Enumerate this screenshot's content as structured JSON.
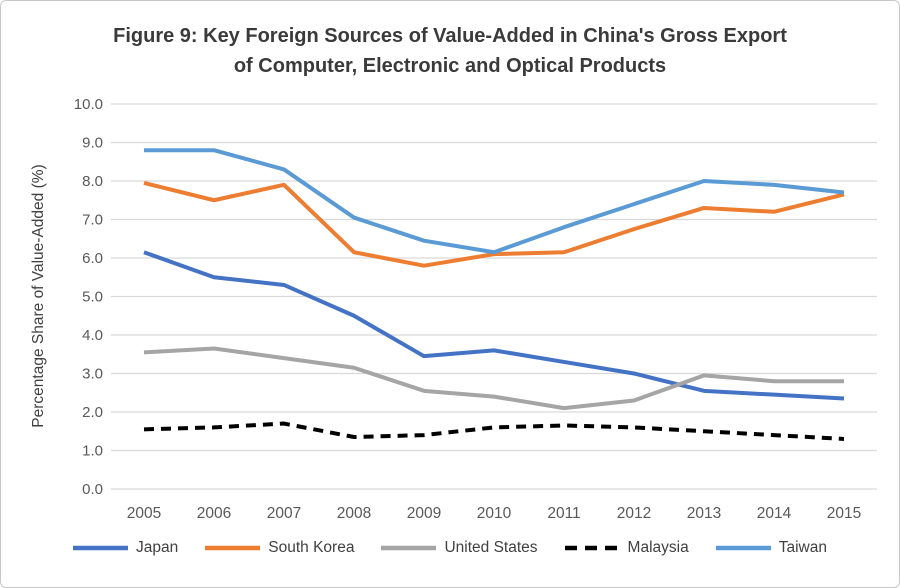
{
  "figure": {
    "title_line1": "Figure 9: Key Foreign Sources of Value-Added in China's Gross Export",
    "title_line2": "of Computer, Electronic and Optical Products"
  },
  "chart_data": {
    "type": "line",
    "title": "Figure 9: Key Foreign Sources of Value-Added in China's Gross Export of Computer, Electronic and Optical Products",
    "xlabel": "",
    "ylabel": "Percentage Share of Value-Added (%)",
    "x": [
      2005,
      2006,
      2007,
      2008,
      2009,
      2010,
      2011,
      2012,
      2013,
      2014,
      2015
    ],
    "ylim": [
      0.0,
      10.0
    ],
    "ytick_step": 1.0,
    "ytick_format": "one-decimal",
    "grid": true,
    "legend_position": "bottom",
    "series": [
      {
        "name": "Japan",
        "color": "#4472C4",
        "dash": "solid",
        "values": [
          6.15,
          5.5,
          5.3,
          4.5,
          3.45,
          3.6,
          3.3,
          3.0,
          2.55,
          2.45,
          2.35
        ]
      },
      {
        "name": "South Korea",
        "color": "#ED7D31",
        "dash": "solid",
        "values": [
          7.95,
          7.5,
          7.9,
          6.15,
          5.8,
          6.1,
          6.15,
          6.75,
          7.3,
          7.2,
          7.65
        ]
      },
      {
        "name": "United States",
        "color": "#A5A5A5",
        "dash": "solid",
        "values": [
          3.55,
          3.65,
          3.4,
          3.15,
          2.55,
          2.4,
          2.1,
          2.3,
          2.95,
          2.8,
          2.8
        ]
      },
      {
        "name": "Malaysia",
        "color": "#000000",
        "dash": "dashed",
        "values": [
          1.55,
          1.6,
          1.7,
          1.35,
          1.4,
          1.6,
          1.65,
          1.6,
          1.5,
          1.4,
          1.3
        ]
      },
      {
        "name": "Taiwan",
        "color": "#5B9BD5",
        "dash": "solid",
        "values": [
          8.8,
          8.8,
          8.3,
          7.05,
          6.45,
          6.15,
          6.8,
          7.4,
          8.0,
          7.9,
          7.7
        ]
      }
    ],
    "colors": {
      "gridline": "#D9D9D9",
      "axis_text": "#595959",
      "title_text": "#3A3A3A"
    }
  }
}
